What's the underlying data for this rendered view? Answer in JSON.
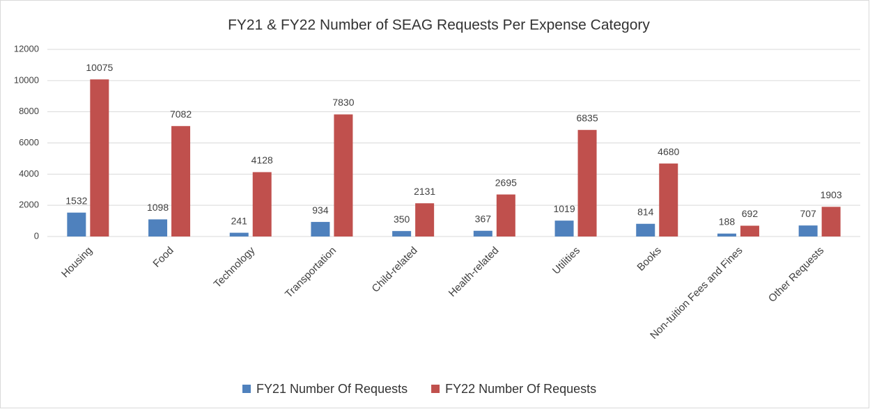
{
  "chart_data": {
    "type": "bar",
    "title": "FY21 & FY22 Number of SEAG Requests Per Expense Category",
    "categories": [
      "Housing",
      "Food",
      "Technology",
      "Transportation",
      "Child-related",
      "Health-related",
      "Utilities",
      "Books",
      "Non-tuition Fees and Fines",
      "Other Requests"
    ],
    "series": [
      {
        "name": "FY21 Number Of Requests",
        "color": "#4f81bd",
        "values": [
          1532,
          1098,
          241,
          934,
          350,
          367,
          1019,
          814,
          188,
          707
        ]
      },
      {
        "name": "FY22 Number Of Requests",
        "color": "#c0504d",
        "values": [
          10075,
          7082,
          4128,
          7830,
          2131,
          2695,
          6835,
          4680,
          692,
          1903
        ]
      }
    ],
    "ylim": [
      0,
      12000
    ],
    "yticks": [
      0,
      2000,
      4000,
      6000,
      8000,
      10000,
      12000
    ],
    "grid": true,
    "legend": "bottom"
  }
}
